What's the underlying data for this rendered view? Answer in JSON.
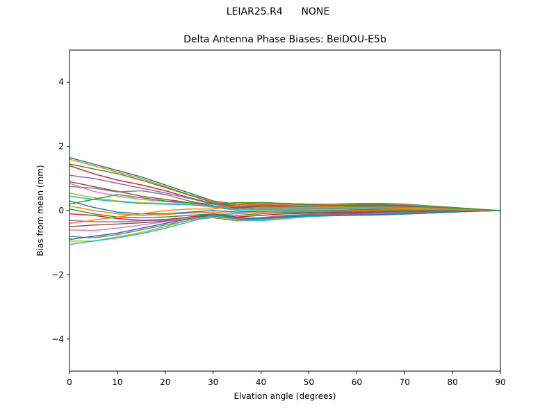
{
  "header": {
    "antenna": "LEIAR25.R4",
    "radome": "NONE"
  },
  "chart_data": {
    "type": "line",
    "title": "Delta Antenna Phase Biases: BeiDOU-E5b",
    "xlabel": "Elvation angle (degrees)",
    "ylabel": "Bias from mean (mm)",
    "xlim": [
      0,
      90
    ],
    "ylim": [
      -5,
      5
    ],
    "xticks": [
      0,
      10,
      20,
      30,
      40,
      50,
      60,
      70,
      80,
      90
    ],
    "yticks": [
      -4,
      -2,
      0,
      2,
      4
    ],
    "grid": false,
    "x": [
      0,
      5,
      10,
      15,
      20,
      25,
      30,
      35,
      40,
      45,
      50,
      55,
      60,
      65,
      70,
      75,
      80,
      85,
      90
    ],
    "series": [
      {
        "values": [
          1.65,
          1.45,
          1.25,
          1.05,
          0.8,
          0.55,
          0.3,
          0.2,
          0.25,
          0.22,
          0.2,
          0.2,
          0.22,
          0.22,
          0.2,
          0.15,
          0.1,
          0.05,
          0.0
        ]
      },
      {
        "values": [
          1.6,
          1.4,
          1.2,
          1.0,
          0.75,
          0.5,
          0.28,
          0.18,
          0.22,
          0.2,
          0.18,
          0.18,
          0.2,
          0.2,
          0.18,
          0.14,
          0.09,
          0.04,
          0.0
        ]
      },
      {
        "values": [
          1.45,
          1.3,
          1.15,
          0.95,
          0.72,
          0.48,
          0.25,
          0.15,
          0.2,
          0.18,
          0.16,
          0.16,
          0.18,
          0.19,
          0.16,
          0.12,
          0.08,
          0.04,
          0.0
        ]
      },
      {
        "values": [
          1.4,
          1.15,
          0.95,
          0.8,
          0.62,
          0.4,
          0.22,
          0.12,
          0.18,
          0.16,
          0.14,
          0.14,
          0.16,
          0.17,
          0.15,
          0.11,
          0.07,
          0.03,
          0.0
        ]
      },
      {
        "values": [
          1.1,
          1.0,
          0.85,
          0.7,
          0.55,
          0.38,
          0.2,
          0.1,
          0.15,
          0.14,
          0.12,
          0.12,
          0.14,
          0.15,
          0.13,
          0.1,
          0.06,
          0.03,
          0.0
        ]
      },
      {
        "values": [
          0.9,
          0.75,
          0.6,
          0.45,
          0.35,
          0.25,
          0.15,
          0.08,
          0.12,
          0.12,
          0.1,
          0.1,
          0.12,
          0.13,
          0.12,
          0.09,
          0.06,
          0.03,
          0.0
        ]
      },
      {
        "values": [
          0.85,
          0.6,
          0.45,
          0.35,
          0.28,
          0.22,
          0.12,
          0.05,
          0.1,
          0.1,
          0.09,
          0.09,
          0.1,
          0.11,
          0.1,
          0.08,
          0.05,
          0.02,
          0.0
        ]
      },
      {
        "values": [
          0.75,
          0.7,
          0.58,
          0.62,
          0.5,
          0.3,
          0.15,
          0.05,
          0.08,
          0.08,
          0.07,
          0.07,
          0.08,
          0.1,
          0.09,
          0.07,
          0.05,
          0.02,
          0.0
        ]
      },
      {
        "values": [
          0.55,
          0.4,
          0.3,
          0.25,
          0.22,
          0.2,
          0.1,
          0.02,
          0.05,
          0.06,
          0.05,
          0.05,
          0.06,
          0.08,
          0.07,
          0.06,
          0.04,
          0.02,
          0.0
        ]
      },
      {
        "values": [
          0.45,
          0.35,
          0.28,
          0.22,
          0.2,
          0.18,
          0.12,
          0.0,
          0.03,
          0.04,
          0.04,
          0.04,
          0.05,
          0.06,
          0.06,
          0.05,
          0.03,
          0.01,
          0.0
        ]
      },
      {
        "values": [
          0.3,
          0.1,
          -0.05,
          -0.1,
          -0.1,
          -0.05,
          0.0,
          -0.05,
          -0.02,
          0.0,
          0.0,
          0.0,
          0.02,
          0.04,
          0.04,
          0.03,
          0.02,
          0.01,
          0.0
        ]
      },
      {
        "values": [
          0.15,
          0.0,
          -0.1,
          -0.15,
          -0.12,
          -0.08,
          -0.05,
          -0.1,
          -0.05,
          -0.03,
          -0.02,
          -0.02,
          0.0,
          0.02,
          0.02,
          0.02,
          0.01,
          0.0,
          0.0
        ]
      },
      {
        "values": [
          0.05,
          -0.1,
          -0.2,
          -0.22,
          -0.2,
          -0.15,
          -0.1,
          -0.15,
          -0.1,
          -0.06,
          -0.05,
          -0.04,
          -0.03,
          -0.01,
          0.0,
          0.0,
          0.0,
          0.0,
          0.0
        ]
      },
      {
        "values": [
          -0.1,
          -0.15,
          -0.25,
          -0.3,
          -0.28,
          -0.2,
          -0.12,
          -0.2,
          -0.15,
          -0.1,
          -0.08,
          -0.07,
          -0.06,
          -0.04,
          -0.03,
          -0.02,
          -0.01,
          0.0,
          0.0
        ]
      },
      {
        "values": [
          -0.3,
          -0.35,
          -0.35,
          -0.32,
          -0.3,
          -0.25,
          -0.15,
          -0.25,
          -0.22,
          -0.15,
          -0.12,
          -0.1,
          -0.09,
          -0.07,
          -0.05,
          -0.04,
          -0.02,
          -0.01,
          0.0
        ]
      },
      {
        "values": [
          -0.5,
          -0.45,
          -0.42,
          -0.38,
          -0.33,
          -0.26,
          -0.18,
          -0.28,
          -0.25,
          -0.18,
          -0.14,
          -0.12,
          -0.1,
          -0.09,
          -0.07,
          -0.05,
          -0.03,
          -0.01,
          0.0
        ]
      },
      {
        "values": [
          -0.6,
          -0.62,
          -0.55,
          -0.45,
          -0.35,
          -0.25,
          -0.2,
          -0.3,
          -0.28,
          -0.2,
          -0.15,
          -0.13,
          -0.12,
          -0.1,
          -0.08,
          -0.06,
          -0.04,
          -0.02,
          0.0
        ]
      },
      {
        "values": [
          -0.8,
          -0.85,
          -0.75,
          -0.6,
          -0.45,
          -0.3,
          -0.22,
          -0.32,
          -0.3,
          -0.22,
          -0.17,
          -0.14,
          -0.13,
          -0.12,
          -0.09,
          -0.07,
          -0.04,
          -0.02,
          0.0
        ]
      },
      {
        "values": [
          -0.95,
          -0.95,
          -0.82,
          -0.68,
          -0.5,
          -0.3,
          -0.2,
          -0.3,
          -0.3,
          -0.23,
          -0.18,
          -0.15,
          -0.14,
          -0.13,
          -0.1,
          -0.08,
          -0.05,
          -0.02,
          0.0
        ]
      },
      {
        "values": [
          -1.05,
          -0.95,
          -0.85,
          -0.72,
          -0.55,
          -0.35,
          -0.15,
          -0.28,
          -0.32,
          -0.25,
          -0.19,
          -0.16,
          -0.15,
          -0.14,
          -0.11,
          -0.08,
          -0.05,
          -0.02,
          0.0
        ]
      },
      {
        "values": [
          -0.9,
          -0.8,
          -0.7,
          -0.55,
          -0.4,
          -0.25,
          -0.12,
          -0.22,
          -0.25,
          -0.2,
          -0.16,
          -0.14,
          -0.13,
          -0.12,
          -0.1,
          -0.07,
          -0.04,
          -0.02,
          0.0
        ]
      },
      {
        "values": [
          -0.4,
          -0.3,
          -0.2,
          -0.1,
          0.0,
          0.05,
          0.05,
          0.15,
          0.2,
          0.18,
          0.15,
          0.12,
          0.1,
          0.08,
          0.06,
          0.04,
          0.03,
          0.01,
          0.0
        ]
      },
      {
        "values": [
          0.2,
          0.35,
          0.5,
          0.4,
          0.3,
          0.25,
          0.2,
          0.25,
          0.25,
          0.22,
          0.18,
          0.15,
          0.16,
          0.18,
          0.16,
          0.12,
          0.08,
          0.04,
          0.0
        ]
      }
    ]
  }
}
